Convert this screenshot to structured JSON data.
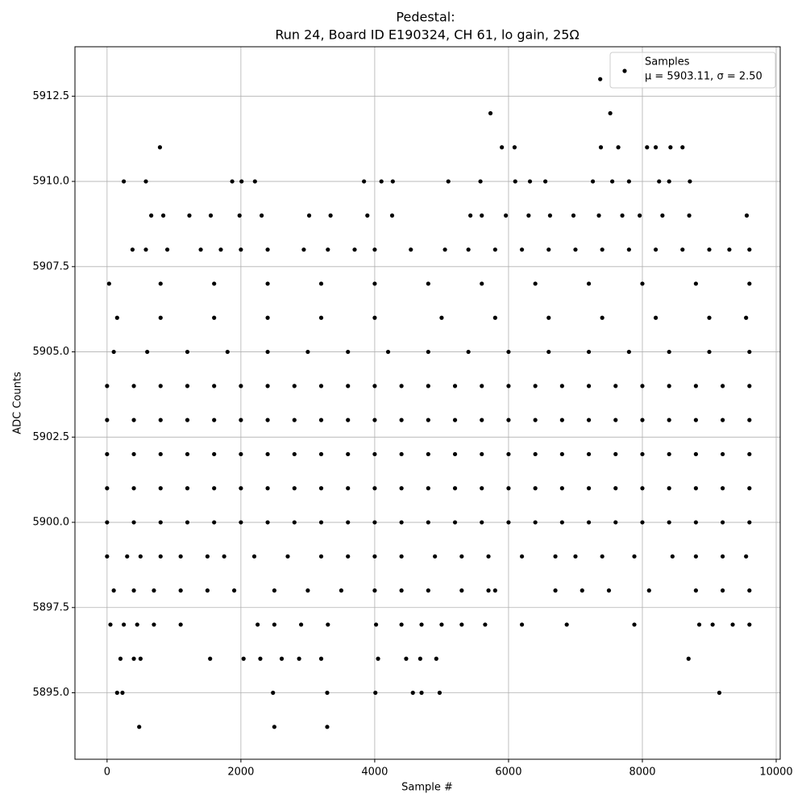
{
  "chart_data": {
    "type": "scatter",
    "title": "Pedestal:",
    "subtitle": "Run 24, Board ID E190324, CH 61, lo gain, 25Ω",
    "x_label": "Sample #",
    "y_label": "ADC Counts",
    "legend": {
      "name": "Samples",
      "label": "μ = 5903.11, σ = 2.50",
      "position": "upper right"
    },
    "color": "#000000",
    "grid": true,
    "xlim": [
      -480,
      10060
    ],
    "ylim": [
      5893.05,
      5913.95
    ],
    "xticks": [
      0,
      2000,
      4000,
      6000,
      8000,
      10000
    ],
    "yticks": [
      {
        "value": 5895,
        "label": "5895.0"
      },
      {
        "value": 5897.5,
        "label": "5897.5"
      },
      {
        "value": 5900,
        "label": "5900.0"
      },
      {
        "value": 5902.5,
        "label": "5902.5"
      },
      {
        "value": 5905,
        "label": "5905.0"
      },
      {
        "value": 5907.5,
        "label": "5907.5"
      },
      {
        "value": 5910,
        "label": "5910.0"
      },
      {
        "value": 5912.5,
        "label": "5912.5"
      }
    ],
    "points": [
      [
        0,
        5900
      ],
      [
        400,
        5900
      ],
      [
        800,
        5900
      ],
      [
        1200,
        5900
      ],
      [
        1600,
        5900
      ],
      [
        2000,
        5900
      ],
      [
        2400,
        5900
      ],
      [
        2800,
        5900
      ],
      [
        3200,
        5900
      ],
      [
        3600,
        5900
      ],
      [
        4000,
        5900
      ],
      [
        4400,
        5900
      ],
      [
        4800,
        5900
      ],
      [
        5200,
        5900
      ],
      [
        5600,
        5900
      ],
      [
        6000,
        5900
      ],
      [
        6400,
        5900
      ],
      [
        6800,
        5900
      ],
      [
        7200,
        5900
      ],
      [
        7600,
        5900
      ],
      [
        8000,
        5900
      ],
      [
        8400,
        5900
      ],
      [
        8800,
        5900
      ],
      [
        9200,
        5900
      ],
      [
        9600,
        5900
      ],
      [
        0,
        5901
      ],
      [
        400,
        5901
      ],
      [
        800,
        5901
      ],
      [
        1200,
        5901
      ],
      [
        1600,
        5901
      ],
      [
        2000,
        5901
      ],
      [
        2400,
        5901
      ],
      [
        2800,
        5901
      ],
      [
        3200,
        5901
      ],
      [
        3600,
        5901
      ],
      [
        4000,
        5901
      ],
      [
        4400,
        5901
      ],
      [
        4800,
        5901
      ],
      [
        5200,
        5901
      ],
      [
        5600,
        5901
      ],
      [
        6000,
        5901
      ],
      [
        6400,
        5901
      ],
      [
        6800,
        5901
      ],
      [
        7200,
        5901
      ],
      [
        7600,
        5901
      ],
      [
        8000,
        5901
      ],
      [
        8400,
        5901
      ],
      [
        8800,
        5901
      ],
      [
        9200,
        5901
      ],
      [
        9600,
        5901
      ],
      [
        0,
        5902
      ],
      [
        400,
        5902
      ],
      [
        800,
        5902
      ],
      [
        1200,
        5902
      ],
      [
        1600,
        5902
      ],
      [
        2000,
        5902
      ],
      [
        2400,
        5902
      ],
      [
        2800,
        5902
      ],
      [
        3200,
        5902
      ],
      [
        3600,
        5902
      ],
      [
        4000,
        5902
      ],
      [
        4400,
        5902
      ],
      [
        4800,
        5902
      ],
      [
        5200,
        5902
      ],
      [
        5600,
        5902
      ],
      [
        6000,
        5902
      ],
      [
        6400,
        5902
      ],
      [
        6800,
        5902
      ],
      [
        7200,
        5902
      ],
      [
        7600,
        5902
      ],
      [
        8000,
        5902
      ],
      [
        8400,
        5902
      ],
      [
        8800,
        5902
      ],
      [
        9200,
        5902
      ],
      [
        9600,
        5902
      ],
      [
        0,
        5903
      ],
      [
        400,
        5903
      ],
      [
        800,
        5903
      ],
      [
        1200,
        5903
      ],
      [
        1600,
        5903
      ],
      [
        2000,
        5903
      ],
      [
        2400,
        5903
      ],
      [
        2800,
        5903
      ],
      [
        3200,
        5903
      ],
      [
        3600,
        5903
      ],
      [
        4000,
        5903
      ],
      [
        4400,
        5903
      ],
      [
        4800,
        5903
      ],
      [
        5200,
        5903
      ],
      [
        5600,
        5903
      ],
      [
        6000,
        5903
      ],
      [
        6400,
        5903
      ],
      [
        6800,
        5903
      ],
      [
        7200,
        5903
      ],
      [
        7600,
        5903
      ],
      [
        8000,
        5903
      ],
      [
        8400,
        5903
      ],
      [
        8800,
        5903
      ],
      [
        9200,
        5903
      ],
      [
        9600,
        5903
      ],
      [
        0,
        5904
      ],
      [
        400,
        5904
      ],
      [
        800,
        5904
      ],
      [
        1200,
        5904
      ],
      [
        1600,
        5904
      ],
      [
        2000,
        5904
      ],
      [
        2400,
        5904
      ],
      [
        2800,
        5904
      ],
      [
        3200,
        5904
      ],
      [
        3600,
        5904
      ],
      [
        4000,
        5904
      ],
      [
        4400,
        5904
      ],
      [
        4800,
        5904
      ],
      [
        5200,
        5904
      ],
      [
        5600,
        5904
      ],
      [
        6000,
        5904
      ],
      [
        6400,
        5904
      ],
      [
        6800,
        5904
      ],
      [
        7200,
        5904
      ],
      [
        7600,
        5904
      ],
      [
        8000,
        5904
      ],
      [
        8400,
        5904
      ],
      [
        8800,
        5904
      ],
      [
        9200,
        5904
      ],
      [
        9600,
        5904
      ],
      [
        100,
        5905
      ],
      [
        600,
        5905
      ],
      [
        1200,
        5905
      ],
      [
        1800,
        5905
      ],
      [
        2400,
        5905
      ],
      [
        3000,
        5905
      ],
      [
        3600,
        5905
      ],
      [
        4200,
        5905
      ],
      [
        4800,
        5905
      ],
      [
        5400,
        5905
      ],
      [
        6000,
        5905
      ],
      [
        6600,
        5905
      ],
      [
        7200,
        5905
      ],
      [
        7800,
        5905
      ],
      [
        8400,
        5905
      ],
      [
        9000,
        5905
      ],
      [
        9600,
        5905
      ],
      [
        150,
        5906
      ],
      [
        800,
        5906
      ],
      [
        1600,
        5906
      ],
      [
        2400,
        5906
      ],
      [
        3200,
        5906
      ],
      [
        4000,
        5906
      ],
      [
        5000,
        5906
      ],
      [
        5800,
        5906
      ],
      [
        6600,
        5906
      ],
      [
        7400,
        5906
      ],
      [
        8200,
        5906
      ],
      [
        9000,
        5906
      ],
      [
        9550,
        5906
      ],
      [
        30,
        5907
      ],
      [
        800,
        5907
      ],
      [
        1600,
        5907
      ],
      [
        2400,
        5907
      ],
      [
        3200,
        5907
      ],
      [
        4000,
        5907
      ],
      [
        4800,
        5907
      ],
      [
        5600,
        5907
      ],
      [
        6400,
        5907
      ],
      [
        7200,
        5907
      ],
      [
        8000,
        5907
      ],
      [
        8800,
        5907
      ],
      [
        9600,
        5907
      ],
      [
        7370,
        5913
      ],
      [
        5730,
        5912
      ],
      [
        7520,
        5912
      ],
      [
        790,
        5911
      ],
      [
        5900,
        5911
      ],
      [
        6090,
        5911
      ],
      [
        7380,
        5911
      ],
      [
        7640,
        5911
      ],
      [
        8070,
        5911
      ],
      [
        8200,
        5911
      ],
      [
        8420,
        5911
      ],
      [
        8600,
        5911
      ],
      [
        250,
        5910
      ],
      [
        580,
        5910
      ],
      [
        1870,
        5910
      ],
      [
        2010,
        5910
      ],
      [
        2210,
        5910
      ],
      [
        3840,
        5910
      ],
      [
        4100,
        5910
      ],
      [
        4270,
        5910
      ],
      [
        5100,
        5910
      ],
      [
        5580,
        5910
      ],
      [
        6100,
        5910
      ],
      [
        6320,
        5910
      ],
      [
        6550,
        5910
      ],
      [
        7260,
        5910
      ],
      [
        7550,
        5910
      ],
      [
        7800,
        5910
      ],
      [
        8250,
        5910
      ],
      [
        8400,
        5910
      ],
      [
        8710,
        5910
      ],
      [
        660,
        5909
      ],
      [
        840,
        5909
      ],
      [
        1230,
        5909
      ],
      [
        1550,
        5909
      ],
      [
        1980,
        5909
      ],
      [
        2310,
        5909
      ],
      [
        3020,
        5909
      ],
      [
        3340,
        5909
      ],
      [
        3890,
        5909
      ],
      [
        4260,
        5909
      ],
      [
        5430,
        5909
      ],
      [
        5600,
        5909
      ],
      [
        5960,
        5909
      ],
      [
        6300,
        5909
      ],
      [
        6620,
        5909
      ],
      [
        6970,
        5909
      ],
      [
        7350,
        5909
      ],
      [
        7700,
        5909
      ],
      [
        7960,
        5909
      ],
      [
        8300,
        5909
      ],
      [
        8700,
        5909
      ],
      [
        9560,
        5909
      ],
      [
        380,
        5908
      ],
      [
        580,
        5908
      ],
      [
        900,
        5908
      ],
      [
        1400,
        5908
      ],
      [
        1700,
        5908
      ],
      [
        2000,
        5908
      ],
      [
        2400,
        5908
      ],
      [
        2940,
        5908
      ],
      [
        3300,
        5908
      ],
      [
        3700,
        5908
      ],
      [
        4000,
        5908
      ],
      [
        4540,
        5908
      ],
      [
        5050,
        5908
      ],
      [
        5400,
        5908
      ],
      [
        5800,
        5908
      ],
      [
        6200,
        5908
      ],
      [
        6600,
        5908
      ],
      [
        7000,
        5908
      ],
      [
        7400,
        5908
      ],
      [
        7800,
        5908
      ],
      [
        8200,
        5908
      ],
      [
        8600,
        5908
      ],
      [
        9000,
        5908
      ],
      [
        9300,
        5908
      ],
      [
        9600,
        5908
      ],
      [
        0,
        5899
      ],
      [
        300,
        5899
      ],
      [
        500,
        5899
      ],
      [
        800,
        5899
      ],
      [
        1100,
        5899
      ],
      [
        1500,
        5899
      ],
      [
        1750,
        5899
      ],
      [
        2200,
        5899
      ],
      [
        2700,
        5899
      ],
      [
        3200,
        5899
      ],
      [
        3600,
        5899
      ],
      [
        4000,
        5899
      ],
      [
        4400,
        5899
      ],
      [
        4900,
        5899
      ],
      [
        5300,
        5899
      ],
      [
        5700,
        5899
      ],
      [
        6200,
        5899
      ],
      [
        6700,
        5899
      ],
      [
        7000,
        5899
      ],
      [
        7400,
        5899
      ],
      [
        7880,
        5899
      ],
      [
        8450,
        5899
      ],
      [
        8800,
        5899
      ],
      [
        9200,
        5899
      ],
      [
        9550,
        5899
      ],
      [
        100,
        5898
      ],
      [
        400,
        5898
      ],
      [
        700,
        5898
      ],
      [
        1100,
        5898
      ],
      [
        1500,
        5898
      ],
      [
        1900,
        5898
      ],
      [
        2500,
        5898
      ],
      [
        3000,
        5898
      ],
      [
        3500,
        5898
      ],
      [
        4000,
        5898
      ],
      [
        4400,
        5898
      ],
      [
        4800,
        5898
      ],
      [
        5300,
        5898
      ],
      [
        5700,
        5898
      ],
      [
        5800,
        5898
      ],
      [
        6700,
        5898
      ],
      [
        7100,
        5898
      ],
      [
        7500,
        5898
      ],
      [
        8100,
        5898
      ],
      [
        8800,
        5898
      ],
      [
        9200,
        5898
      ],
      [
        9600,
        5898
      ],
      [
        50,
        5897
      ],
      [
        250,
        5897
      ],
      [
        450,
        5897
      ],
      [
        700,
        5897
      ],
      [
        1100,
        5897
      ],
      [
        2250,
        5897
      ],
      [
        2500,
        5897
      ],
      [
        2900,
        5897
      ],
      [
        3300,
        5897
      ],
      [
        4020,
        5897
      ],
      [
        4400,
        5897
      ],
      [
        4700,
        5897
      ],
      [
        5000,
        5897
      ],
      [
        5300,
        5897
      ],
      [
        5650,
        5897
      ],
      [
        6200,
        5897
      ],
      [
        6870,
        5897
      ],
      [
        7880,
        5897
      ],
      [
        8850,
        5897
      ],
      [
        9050,
        5897
      ],
      [
        9350,
        5897
      ],
      [
        9600,
        5897
      ],
      [
        200,
        5896
      ],
      [
        400,
        5896
      ],
      [
        500,
        5896
      ],
      [
        1540,
        5896
      ],
      [
        2040,
        5896
      ],
      [
        2290,
        5896
      ],
      [
        2610,
        5896
      ],
      [
        2870,
        5896
      ],
      [
        3200,
        5896
      ],
      [
        4050,
        5896
      ],
      [
        4470,
        5896
      ],
      [
        4680,
        5896
      ],
      [
        4920,
        5896
      ],
      [
        8690,
        5896
      ],
      [
        150,
        5895
      ],
      [
        230,
        5895
      ],
      [
        2480,
        5895
      ],
      [
        3290,
        5895
      ],
      [
        4010,
        5895
      ],
      [
        4570,
        5895
      ],
      [
        4700,
        5895
      ],
      [
        4970,
        5895
      ],
      [
        9150,
        5895
      ],
      [
        480,
        5894
      ],
      [
        2500,
        5894
      ],
      [
        3290,
        5894
      ]
    ]
  }
}
